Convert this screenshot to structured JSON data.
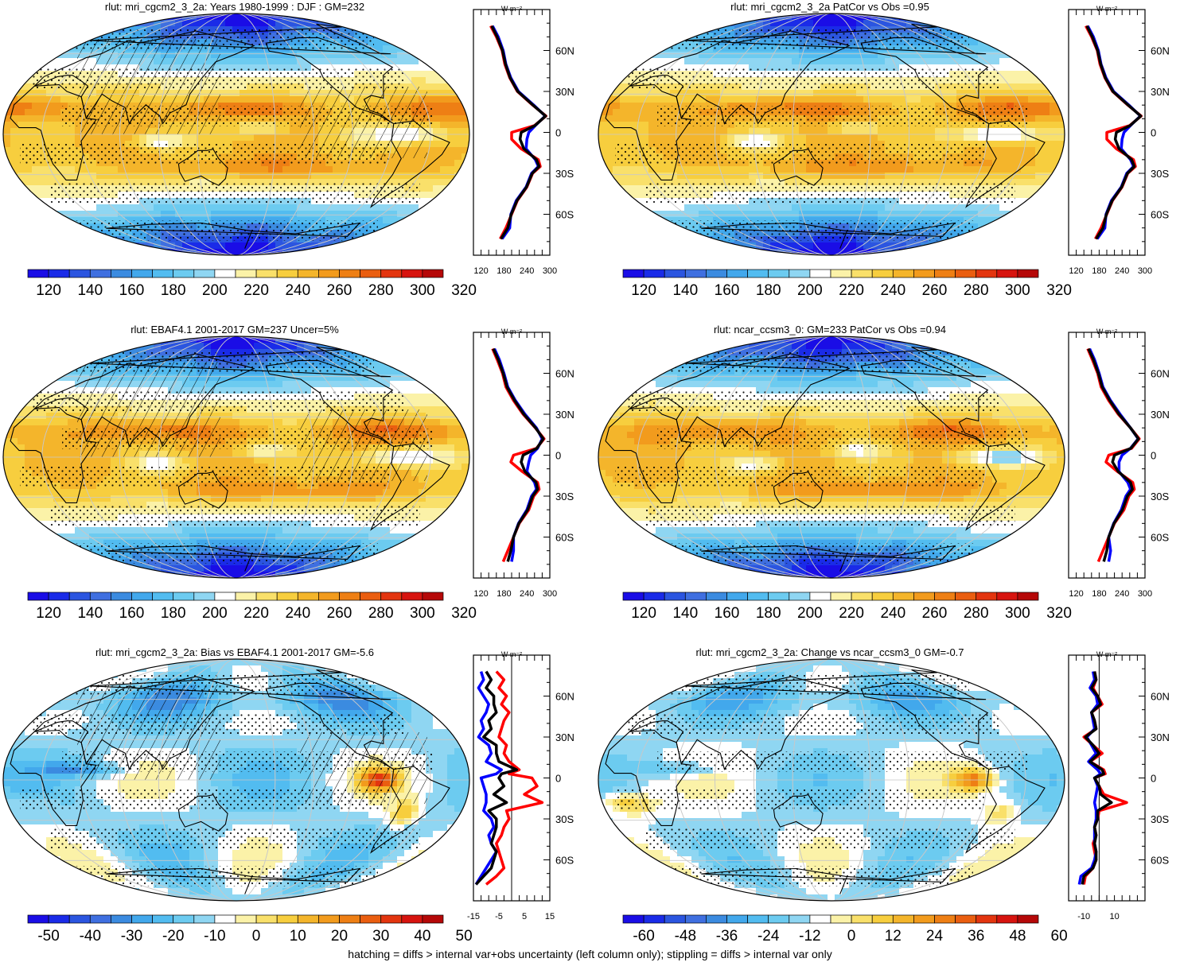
{
  "footer": "hatching = diffs > internal var+obs uncertainty (left column only); stippling = diffs > internal var only",
  "units": "W m⁻²",
  "lat_ticks": [
    "60N",
    "30N",
    "0",
    "30S",
    "60S"
  ],
  "lat_values": [
    60,
    30,
    0,
    -30,
    -60
  ],
  "palette": [
    "#1a0de6",
    "#1a2be8",
    "#2b55e0",
    "#3f6fe0",
    "#3b8be0",
    "#42a8ec",
    "#52bcf0",
    "#6ccbf0",
    "#8fd6f2",
    "#ffffff",
    "#fbf2a8",
    "#f9e06a",
    "#f7ce3e",
    "#f4b52b",
    "#f29b1d",
    "#ee7f14",
    "#ea5e10",
    "#e3350f",
    "#d7140f",
    "#b50808"
  ],
  "colors": {
    "obs": "#ff0000",
    "model": "#0000ff",
    "mean": "#000000"
  },
  "chart_data": [
    {
      "type": "heatmap",
      "title": "rlut: mri_cgcm2_3_2a: Years 1980-1999 : DJF : GM=232",
      "colorbar_labels": [
        "120",
        "140",
        "160",
        "180",
        "200",
        "220",
        "240",
        "260",
        "280",
        "300",
        "320"
      ],
      "range": [
        110,
        330
      ],
      "profile": {
        "xticks": [
          "120",
          "180",
          "240",
          "300"
        ],
        "xlim": [
          100,
          300
        ],
        "lat": [
          78,
          70,
          60,
          50,
          40,
          30,
          20,
          12,
          5,
          0,
          -5,
          -12,
          -20,
          -25,
          -30,
          -40,
          -50,
          -60,
          -70,
          -78
        ],
        "obs": [
          145,
          160,
          175,
          182,
          195,
          215,
          255,
          290,
          260,
          200,
          200,
          225,
          270,
          275,
          255,
          240,
          215,
          200,
          185,
          170
        ],
        "model": [
          150,
          165,
          178,
          185,
          198,
          218,
          258,
          288,
          262,
          245,
          240,
          238,
          262,
          270,
          252,
          238,
          212,
          198,
          195,
          175
        ],
        "mean": [
          148,
          162,
          176,
          184,
          196,
          216,
          256,
          289,
          261,
          225,
          222,
          232,
          265,
          272,
          254,
          239,
          214,
          199,
          190,
          172
        ]
      }
    },
    {
      "type": "heatmap",
      "title": "rlut: mri_cgcm2_3_2a PatCor vs Obs =0.95",
      "colorbar_labels": [
        "120",
        "140",
        "160",
        "180",
        "200",
        "220",
        "240",
        "260",
        "280",
        "300",
        "320"
      ],
      "range": [
        110,
        330
      ],
      "profile": {
        "xticks": [
          "120",
          "180",
          "240",
          "300"
        ],
        "xlim": [
          100,
          300
        ],
        "lat": [
          78,
          70,
          60,
          50,
          40,
          30,
          20,
          12,
          5,
          0,
          -5,
          -12,
          -20,
          -25,
          -30,
          -40,
          -50,
          -60,
          -70,
          -78
        ],
        "obs": [
          145,
          160,
          175,
          182,
          195,
          215,
          255,
          290,
          260,
          200,
          200,
          225,
          270,
          275,
          255,
          240,
          215,
          200,
          185,
          170
        ],
        "model": [
          150,
          165,
          178,
          185,
          198,
          218,
          258,
          288,
          262,
          245,
          240,
          238,
          262,
          270,
          252,
          238,
          212,
          198,
          195,
          175
        ],
        "mean": [
          148,
          162,
          176,
          184,
          196,
          216,
          256,
          289,
          261,
          225,
          222,
          232,
          265,
          272,
          254,
          239,
          214,
          199,
          190,
          172
        ]
      }
    },
    {
      "type": "heatmap",
      "title": "rlut: EBAF4.1 2001-2017 GM=237 Uncer=5%",
      "colorbar_labels": [
        "120",
        "140",
        "160",
        "180",
        "200",
        "220",
        "240",
        "260",
        "280",
        "300",
        "320"
      ],
      "range": [
        110,
        330
      ],
      "profile": {
        "xticks": [
          "120",
          "180",
          "240",
          "300"
        ],
        "xlim": [
          100,
          300
        ],
        "lat": [
          78,
          70,
          60,
          50,
          40,
          30,
          20,
          12,
          5,
          0,
          -5,
          -12,
          -20,
          -25,
          -30,
          -40,
          -50,
          -60,
          -70,
          -78
        ],
        "obs": [
          150,
          162,
          176,
          185,
          205,
          230,
          262,
          285,
          265,
          205,
          198,
          228,
          268,
          272,
          258,
          245,
          220,
          205,
          190,
          178
        ],
        "model": [
          155,
          168,
          180,
          190,
          210,
          235,
          265,
          280,
          268,
          250,
          245,
          240,
          260,
          265,
          252,
          240,
          218,
          205,
          205,
          200
        ],
        "mean": [
          152,
          165,
          178,
          188,
          208,
          232,
          263,
          283,
          266,
          230,
          225,
          235,
          264,
          268,
          255,
          242,
          219,
          205,
          198,
          190
        ]
      }
    },
    {
      "type": "heatmap",
      "title": "rlut: ncar_ccsm3_0: GM=233 PatCor vs Obs =0.94",
      "colorbar_labels": [
        "120",
        "140",
        "160",
        "180",
        "200",
        "220",
        "240",
        "260",
        "280",
        "300",
        "320"
      ],
      "range": [
        110,
        330
      ],
      "profile": {
        "xticks": [
          "120",
          "180",
          "240",
          "300"
        ],
        "xlim": [
          100,
          300
        ],
        "lat": [
          78,
          70,
          60,
          50,
          40,
          30,
          20,
          12,
          5,
          0,
          -5,
          -12,
          -20,
          -25,
          -30,
          -40,
          -50,
          -60,
          -70,
          -78
        ],
        "obs": [
          150,
          162,
          176,
          185,
          205,
          230,
          262,
          285,
          265,
          205,
          198,
          228,
          268,
          272,
          258,
          245,
          220,
          205,
          190,
          178
        ],
        "model": [
          155,
          168,
          180,
          190,
          210,
          235,
          262,
          282,
          262,
          240,
          232,
          232,
          255,
          262,
          250,
          238,
          218,
          205,
          210,
          205
        ],
        "mean": [
          152,
          165,
          178,
          188,
          208,
          232,
          262,
          283,
          263,
          220,
          215,
          230,
          262,
          267,
          254,
          241,
          219,
          205,
          200,
          192
        ]
      }
    },
    {
      "type": "heatmap",
      "title": "rlut: mri_cgcm2_3_2a: Bias vs EBAF4.1 2001-2017 GM=-5.6",
      "colorbar_labels": [
        "-50",
        "-40",
        "-30",
        "-20",
        "-10",
        "0",
        "10",
        "20",
        "30",
        "40",
        "50"
      ],
      "range": [
        -55,
        55
      ],
      "profile": {
        "xticks": [
          "-15",
          "-5",
          "5",
          "15"
        ],
        "xlim": [
          -15,
          15
        ],
        "zero_line": 0,
        "lat": [
          78,
          72,
          66,
          60,
          54,
          48,
          42,
          36,
          30,
          24,
          18,
          12,
          6,
          3,
          0,
          -6,
          -12,
          -18,
          -24,
          -30,
          -36,
          -42,
          -48,
          -54,
          -60,
          -66,
          -72,
          -78
        ],
        "obs": [
          -6,
          -3,
          -5,
          -2,
          -4,
          -1,
          -3,
          -4,
          -5,
          -2,
          -3,
          -1,
          3,
          -1,
          8,
          10,
          5,
          12,
          -2,
          -1,
          -3,
          -4,
          -6,
          -5,
          -4,
          -3,
          -6,
          -10
        ],
        "model": [
          -12,
          -11,
          -13,
          -11,
          -9,
          -10,
          -12,
          -11,
          -13,
          -9,
          -8,
          -10,
          -4,
          -6,
          -12,
          -11,
          -10,
          -10,
          -11,
          -8,
          -7,
          -9,
          -8,
          -6,
          -8,
          -10,
          -12,
          -14
        ],
        "mean": [
          -10,
          -8,
          -10,
          -7,
          -7,
          -6,
          -9,
          -8,
          -11,
          -6,
          -6,
          -5,
          2,
          -4,
          -5,
          -3,
          -7,
          -2,
          -9,
          -6,
          -6,
          -7,
          -8,
          -6,
          -7,
          -8,
          -11,
          -14
        ]
      }
    },
    {
      "type": "heatmap",
      "title": "rlut: mri_cgcm2_3_2a: Change vs ncar_ccsm3_0 GM=-0.7",
      "colorbar_labels": [
        "-60",
        "-48",
        "-36",
        "-24",
        "-12",
        "0",
        "12",
        "24",
        "36",
        "48",
        "60"
      ],
      "range": [
        -66,
        66
      ],
      "profile": {
        "xticks": [
          "-10",
          "10"
        ],
        "xlim": [
          -20,
          30
        ],
        "zero_line": 0,
        "lat": [
          78,
          72,
          66,
          60,
          54,
          48,
          42,
          36,
          30,
          24,
          18,
          12,
          6,
          3,
          0,
          -6,
          -12,
          -18,
          -24,
          -30,
          -36,
          -42,
          -48,
          -54,
          -60,
          -66,
          -72,
          -78
        ],
        "obs": [
          -3,
          -2,
          -4,
          -1,
          2,
          -5,
          -3,
          -2,
          -10,
          -4,
          2,
          -6,
          3,
          4,
          -3,
          0,
          3,
          18,
          0,
          -1,
          -3,
          -2,
          -4,
          -3,
          -2,
          -4,
          -9,
          -10
        ],
        "model": [
          -4,
          -3,
          -6,
          -2,
          -1,
          -5,
          -4,
          -3,
          -8,
          -5,
          -2,
          -7,
          -1,
          1,
          -3,
          -1,
          -2,
          -3,
          -2,
          -2,
          -3,
          -3,
          -3,
          -2,
          -3,
          -5,
          -12,
          -13
        ],
        "mean": [
          -3,
          -2,
          -5,
          -1,
          1,
          -5,
          -3,
          -2,
          -9,
          -4,
          0,
          -6,
          2,
          3,
          -3,
          0,
          1,
          8,
          -1,
          -1,
          -3,
          -2,
          -3,
          -2,
          -2,
          -4,
          -10,
          -11
        ]
      }
    }
  ]
}
